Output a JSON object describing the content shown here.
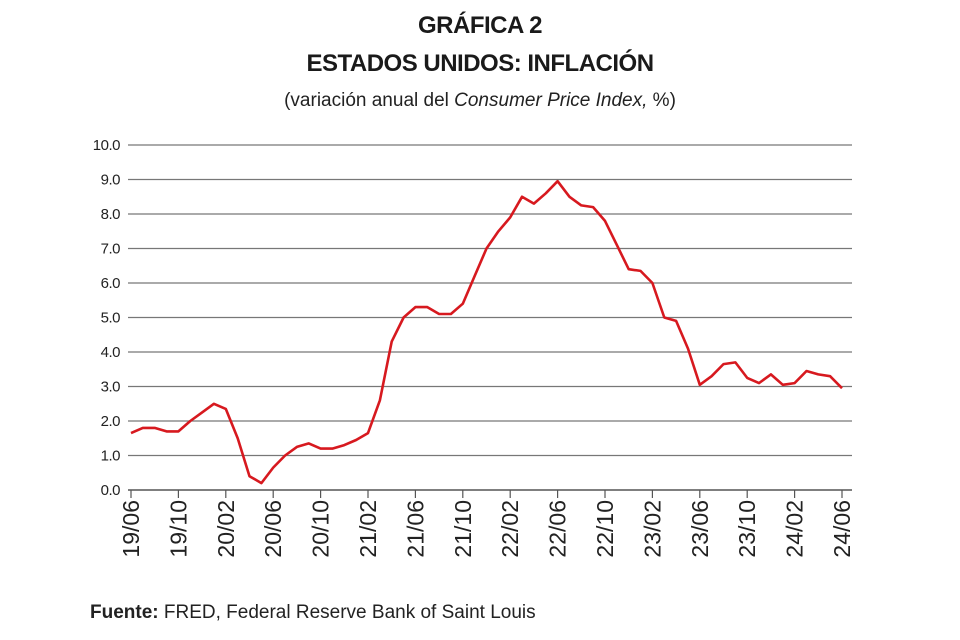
{
  "title_line1": "GRÁFICA 2",
  "title_line2": "ESTADOS UNIDOS: INFLACIÓN",
  "subtitle_pre": "(variación anual del ",
  "subtitle_italic": "Consumer Price Index,",
  "subtitle_post": " %)",
  "source_label": "Fuente:",
  "source_text": " FRED, Federal Reserve Bank of Saint Louis",
  "chart_data": {
    "type": "line",
    "title": "ESTADOS UNIDOS: INFLACIÓN",
    "ylim": [
      0,
      10
    ],
    "yticks": [
      "0.0",
      "1.0",
      "2.0",
      "3.0",
      "4.0",
      "5.0",
      "6.0",
      "7.0",
      "8.0",
      "9.0",
      "10.0"
    ],
    "xtick_labels": [
      "19/06",
      "19/10",
      "20/02",
      "20/06",
      "20/10",
      "21/02",
      "21/06",
      "21/10",
      "22/02",
      "22/06",
      "22/10",
      "23/02",
      "23/06",
      "23/10",
      "24/02",
      "24/06"
    ],
    "grid": true,
    "line_color": "#d7191f",
    "x": [
      "19/06",
      "19/07",
      "19/08",
      "19/09",
      "19/10",
      "19/11",
      "19/12",
      "20/01",
      "20/02",
      "20/03",
      "20/04",
      "20/05",
      "20/06",
      "20/07",
      "20/08",
      "20/09",
      "20/10",
      "20/11",
      "20/12",
      "21/01",
      "21/02",
      "21/03",
      "21/04",
      "21/05",
      "21/06",
      "21/07",
      "21/08",
      "21/09",
      "21/10",
      "21/11",
      "21/12",
      "22/01",
      "22/02",
      "22/03",
      "22/04",
      "22/05",
      "22/06",
      "22/07",
      "22/08",
      "22/09",
      "22/10",
      "22/11",
      "22/12",
      "23/01",
      "23/02",
      "23/03",
      "23/04",
      "23/05",
      "23/06",
      "23/07",
      "23/08",
      "23/09",
      "23/10",
      "23/11",
      "23/12",
      "24/01",
      "24/02",
      "24/03",
      "24/04",
      "24/05",
      "24/06"
    ],
    "values": [
      1.65,
      1.8,
      1.8,
      1.7,
      1.7,
      2.0,
      2.25,
      2.5,
      2.35,
      1.5,
      0.4,
      0.2,
      0.65,
      1.0,
      1.25,
      1.35,
      1.2,
      1.2,
      1.3,
      1.45,
      1.65,
      2.6,
      4.3,
      5.0,
      5.3,
      5.3,
      5.1,
      5.1,
      5.4,
      6.2,
      7.0,
      7.5,
      7.9,
      8.5,
      8.3,
      8.6,
      8.95,
      8.5,
      8.25,
      8.2,
      7.8,
      7.1,
      6.4,
      6.35,
      6.0,
      5.0,
      4.9,
      4.1,
      3.05,
      3.3,
      3.65,
      3.7,
      3.25,
      3.1,
      3.35,
      3.05,
      3.1,
      3.45,
      3.35,
      3.3,
      2.95
    ]
  }
}
